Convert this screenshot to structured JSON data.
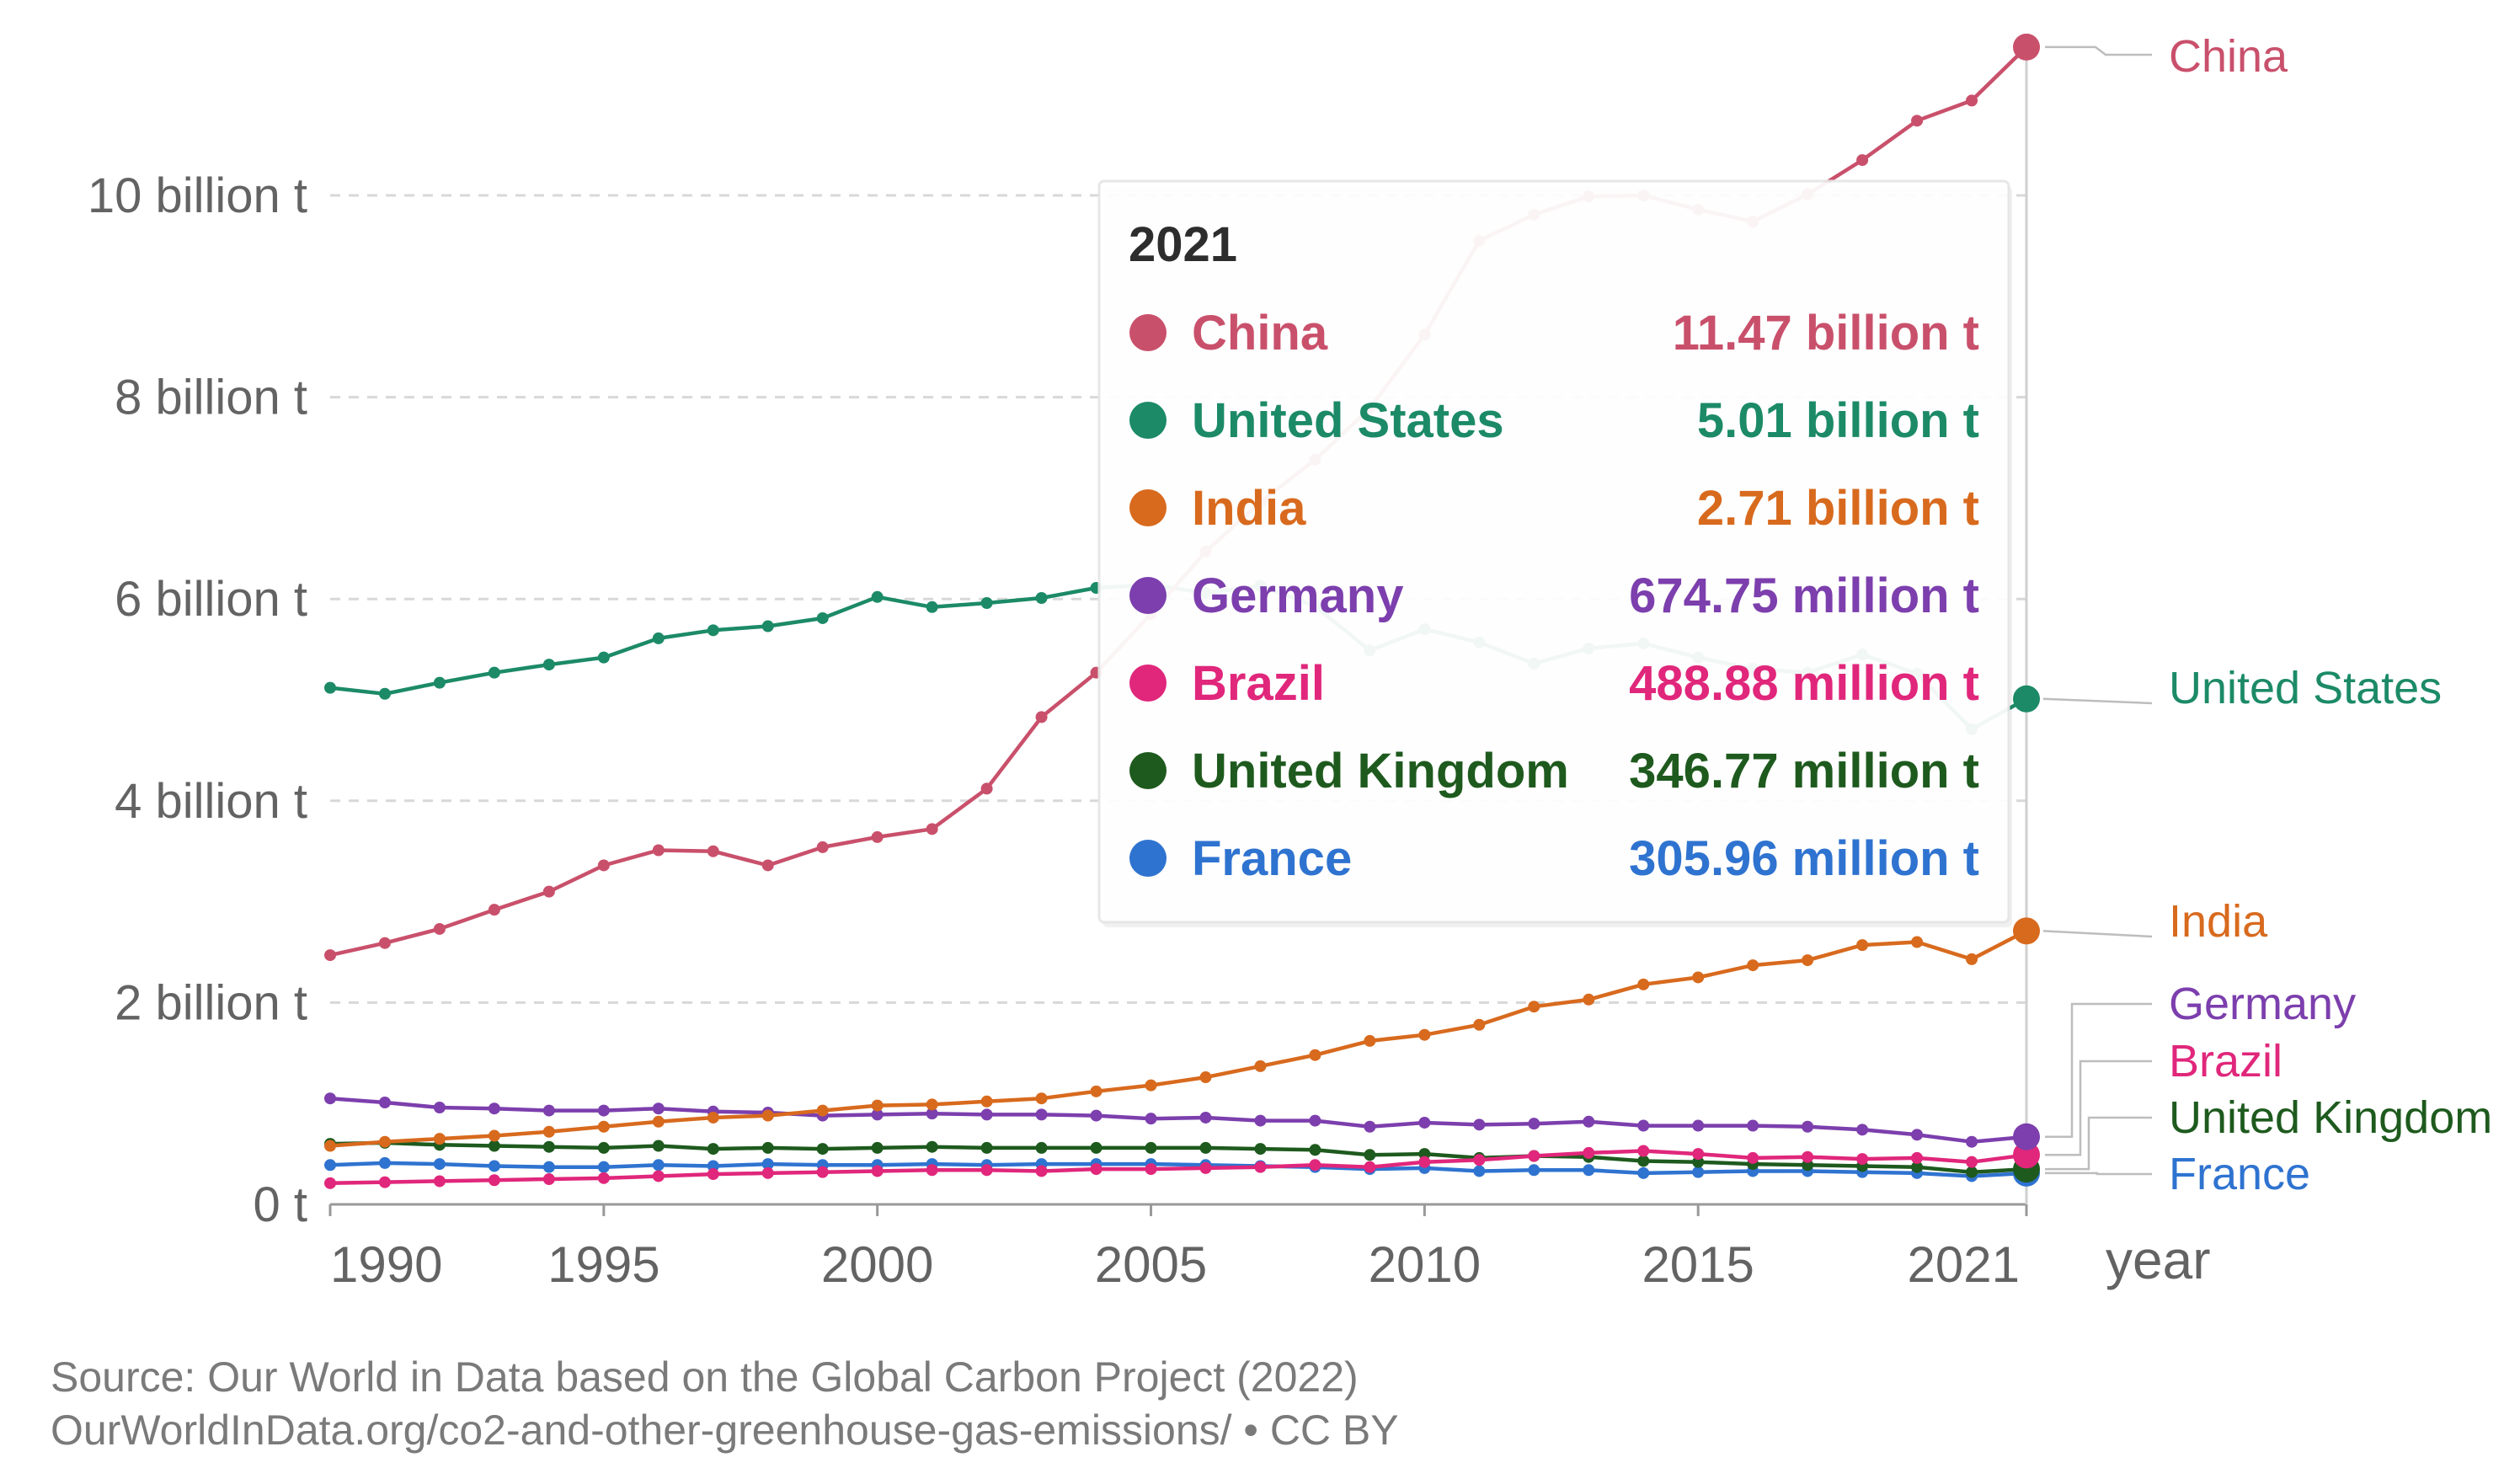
{
  "chart_data": {
    "type": "line",
    "ylabel": "",
    "xlabel": "year",
    "ylim": [
      0,
      11500000000
    ],
    "y_ticks": [
      {
        "value": 0,
        "label": "0 t"
      },
      {
        "value": 2000000000,
        "label": "2 billion t"
      },
      {
        "value": 4000000000,
        "label": "4 billion t"
      },
      {
        "value": 6000000000,
        "label": "6 billion t"
      },
      {
        "value": 8000000000,
        "label": "8 billion t"
      },
      {
        "value": 10000000000,
        "label": "10 billion t"
      }
    ],
    "x_ticks": [
      {
        "value": 1990,
        "label": "1990"
      },
      {
        "value": 1995,
        "label": "1995"
      },
      {
        "value": 2000,
        "label": "2000"
      },
      {
        "value": 2005,
        "label": "2005"
      },
      {
        "value": 2010,
        "label": "2010"
      },
      {
        "value": 2015,
        "label": "2015"
      },
      {
        "value": 2021,
        "label": "2021"
      }
    ],
    "x": [
      1990,
      1991,
      1992,
      1993,
      1994,
      1995,
      1996,
      1997,
      1998,
      1999,
      2000,
      2001,
      2002,
      2003,
      2004,
      2005,
      2006,
      2007,
      2008,
      2009,
      2010,
      2011,
      2012,
      2013,
      2014,
      2015,
      2016,
      2017,
      2018,
      2019,
      2020,
      2021
    ],
    "series": [
      {
        "name": "China",
        "color": "#c9506b",
        "values": [
          2.47,
          2.59,
          2.73,
          2.92,
          3.1,
          3.36,
          3.51,
          3.5,
          3.36,
          3.54,
          3.64,
          3.72,
          4.12,
          4.83,
          5.27,
          5.85,
          6.47,
          6.96,
          7.38,
          7.89,
          8.62,
          9.55,
          9.81,
          9.99,
          10.0,
          9.86,
          9.74,
          10.01,
          10.35,
          10.74,
          10.94,
          11.47
        ]
      },
      {
        "name": "United States",
        "color": "#1c8a67",
        "values": [
          5.12,
          5.06,
          5.17,
          5.27,
          5.35,
          5.42,
          5.61,
          5.69,
          5.73,
          5.81,
          6.02,
          5.92,
          5.96,
          6.01,
          6.11,
          6.14,
          6.06,
          6.13,
          5.93,
          5.49,
          5.7,
          5.57,
          5.36,
          5.51,
          5.56,
          5.42,
          5.31,
          5.27,
          5.45,
          5.26,
          4.71,
          5.01
        ]
      },
      {
        "name": "India",
        "color": "#d86a1e",
        "values": [
          0.58,
          0.62,
          0.65,
          0.68,
          0.72,
          0.77,
          0.82,
          0.86,
          0.88,
          0.93,
          0.98,
          0.99,
          1.02,
          1.05,
          1.12,
          1.18,
          1.26,
          1.37,
          1.48,
          1.62,
          1.68,
          1.78,
          1.96,
          2.03,
          2.18,
          2.25,
          2.37,
          2.42,
          2.57,
          2.6,
          2.43,
          2.71
        ]
      },
      {
        "name": "Germany",
        "color": "#7c3fad",
        "values": [
          1.05,
          1.01,
          0.96,
          0.95,
          0.93,
          0.93,
          0.95,
          0.92,
          0.91,
          0.88,
          0.89,
          0.9,
          0.89,
          0.89,
          0.88,
          0.85,
          0.86,
          0.83,
          0.83,
          0.77,
          0.81,
          0.79,
          0.8,
          0.82,
          0.78,
          0.78,
          0.78,
          0.77,
          0.74,
          0.69,
          0.62,
          0.67
        ]
      },
      {
        "name": "Brazil",
        "color": "#e0277b",
        "values": [
          0.21,
          0.22,
          0.23,
          0.24,
          0.25,
          0.26,
          0.28,
          0.3,
          0.31,
          0.32,
          0.33,
          0.34,
          0.34,
          0.33,
          0.35,
          0.35,
          0.36,
          0.37,
          0.39,
          0.37,
          0.42,
          0.44,
          0.48,
          0.51,
          0.53,
          0.5,
          0.46,
          0.47,
          0.45,
          0.46,
          0.42,
          0.49
        ]
      },
      {
        "name": "United Kingdom",
        "color": "#1e5a1e",
        "values": [
          0.6,
          0.61,
          0.59,
          0.58,
          0.57,
          0.56,
          0.58,
          0.55,
          0.56,
          0.55,
          0.56,
          0.57,
          0.56,
          0.56,
          0.56,
          0.56,
          0.56,
          0.55,
          0.54,
          0.49,
          0.5,
          0.46,
          0.48,
          0.47,
          0.43,
          0.42,
          0.4,
          0.39,
          0.38,
          0.37,
          0.32,
          0.35
        ]
      },
      {
        "name": "France",
        "color": "#2f73d0",
        "values": [
          0.39,
          0.41,
          0.4,
          0.38,
          0.37,
          0.37,
          0.39,
          0.38,
          0.4,
          0.39,
          0.39,
          0.4,
          0.39,
          0.4,
          0.4,
          0.4,
          0.39,
          0.38,
          0.37,
          0.35,
          0.36,
          0.33,
          0.34,
          0.34,
          0.31,
          0.32,
          0.33,
          0.33,
          0.32,
          0.31,
          0.28,
          0.31
        ]
      }
    ],
    "end_labels": [
      "China",
      "United States",
      "India",
      "Germany",
      "Brazil",
      "United Kingdom",
      "France"
    ],
    "tooltip": {
      "title": "2021",
      "rows": [
        {
          "name": "China",
          "value": "11.47 billion t",
          "color": "#c9506b"
        },
        {
          "name": "United States",
          "value": "5.01 billion t",
          "color": "#1c8a67"
        },
        {
          "name": "India",
          "value": "2.71 billion t",
          "color": "#d86a1e"
        },
        {
          "name": "Germany",
          "value": "674.75 million t",
          "color": "#7c3fad"
        },
        {
          "name": "Brazil",
          "value": "488.88 million t",
          "color": "#e0277b"
        },
        {
          "name": "United Kingdom",
          "value": "346.77 million t",
          "color": "#1e5a1e"
        },
        {
          "name": "France",
          "value": "305.96 million t",
          "color": "#2f73d0"
        }
      ]
    },
    "source_lines": [
      "Source: Our World in Data based on the Global Carbon Project (2022)",
      "OurWorldInData.org/co2-and-other-greenhouse-gas-emissions/ • CC BY"
    ]
  }
}
